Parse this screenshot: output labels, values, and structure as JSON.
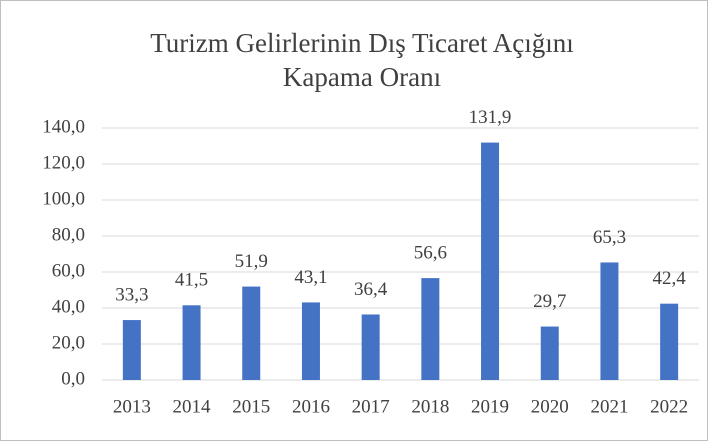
{
  "chart_data": {
    "type": "bar",
    "title": [
      "Turizm Gelirlerinin Dış Ticaret Açığını",
      "Kapama Oranı"
    ],
    "categories": [
      "2013",
      "2014",
      "2015",
      "2016",
      "2017",
      "2018",
      "2019",
      "2020",
      "2021",
      "2022"
    ],
    "values": [
      33.3,
      41.5,
      51.9,
      43.1,
      36.4,
      56.6,
      131.9,
      29.7,
      65.3,
      42.4
    ],
    "value_labels": [
      "33,3",
      "41,5",
      "51,9",
      "43,1",
      "36,4",
      "56,6",
      "131,9",
      "29,7",
      "65,3",
      "42,4"
    ],
    "color": "#4472c4",
    "ylim": [
      0,
      140
    ],
    "yticks": [
      {
        "value": 0,
        "label": "0,0"
      },
      {
        "value": 20,
        "label": "20,0"
      },
      {
        "value": 40,
        "label": "40,0"
      },
      {
        "value": 60,
        "label": "60,0"
      },
      {
        "value": 80,
        "label": "80,0"
      },
      {
        "value": 100,
        "label": "100,0"
      },
      {
        "value": 120,
        "label": "120,0"
      },
      {
        "value": 140,
        "label": "140,0"
      }
    ],
    "grid": true
  }
}
